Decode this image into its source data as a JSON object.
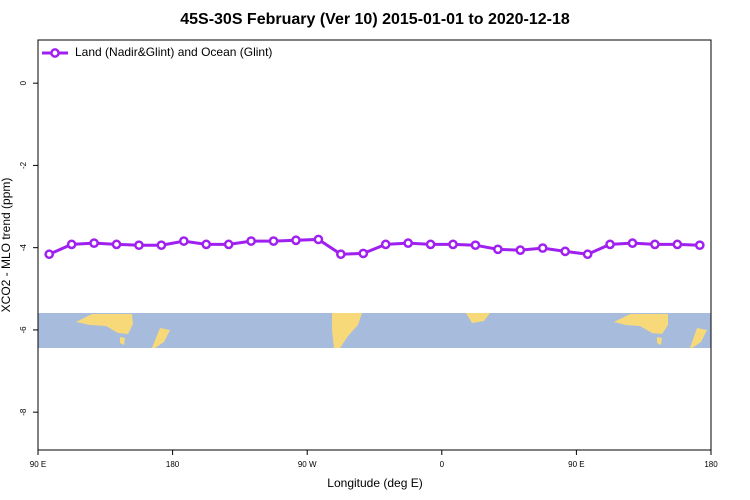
{
  "chart_data": {
    "type": "line",
    "title": "45S-30S February (Ver 10)   2015-01-01 to 2020-12-18",
    "xlabel": "Longitude (deg E)",
    "ylabel": "XCO2 - MLO trend (ppm)",
    "x": [
      97.5,
      112.5,
      127.5,
      142.5,
      157.5,
      172.5,
      187.5,
      202.5,
      217.5,
      232.5,
      247.5,
      262.5,
      277.5,
      292.5,
      307.5,
      322.5,
      337.5,
      352.5,
      367.5,
      382.5,
      397.5,
      412.5,
      427.5,
      442.5,
      457.5,
      472.5,
      487.5,
      502.5,
      517.5,
      532.5
    ],
    "series": [
      {
        "name": "Land (Nadir&Glint) and Ocean (Glint)",
        "color": "#a020f0",
        "values": [
          -4.16,
          -3.92,
          -3.89,
          -3.92,
          -3.94,
          -3.94,
          -3.84,
          -3.92,
          -3.92,
          -3.84,
          -3.84,
          -3.82,
          -3.8,
          -4.16,
          -4.14,
          -3.92,
          -3.89,
          -3.92,
          -3.92,
          -3.94,
          -4.04,
          -4.06,
          -4.01,
          -4.09,
          -4.16,
          -3.92,
          -3.89,
          -3.92,
          -3.92,
          -3.94
        ]
      }
    ],
    "xlim": [
      90,
      540
    ],
    "xticks": [
      {
        "value": 90,
        "label": "90 E"
      },
      {
        "value": 180,
        "label": "180"
      },
      {
        "value": 270,
        "label": "90 W"
      },
      {
        "value": 360,
        "label": "0"
      },
      {
        "value": 450,
        "label": "90 E"
      },
      {
        "value": 540,
        "label": "180"
      }
    ],
    "ylim": [
      -8.92,
      1.05
    ],
    "yticks": [
      0,
      -2,
      -4,
      -6,
      -8
    ],
    "legend": "top-left"
  }
}
